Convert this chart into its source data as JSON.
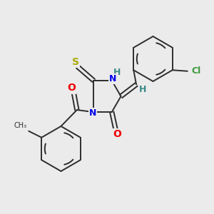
{
  "background_color": "#ebebeb",
  "bond_color": "#2d2d2d",
  "atom_colors": {
    "N": "#0000ee",
    "O": "#ee0000",
    "S": "#aaaa00",
    "Cl": "#3a9a3a",
    "H": "#3a8a8a",
    "C": "#2d2d2d"
  },
  "figsize": [
    3.0,
    3.0
  ],
  "dpi": 100,
  "xlim": [
    0,
    10
  ],
  "ylim": [
    0,
    10
  ]
}
